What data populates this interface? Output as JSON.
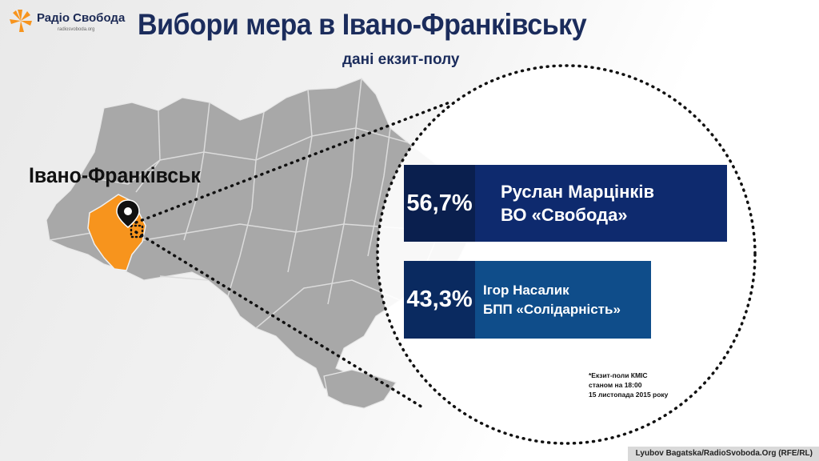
{
  "logo": {
    "name": "Радіо Свобода",
    "sub": "radiosvoboda.org"
  },
  "title": "Вибори мера в Івано-Франківську",
  "subtitle": "дані екзит-полу",
  "city": "Івано-Франківськ",
  "colors": {
    "navy": "#0e2a6e",
    "blue": "#0f4d8a",
    "orange": "#f7941d",
    "map_gray": "#a8a8a8"
  },
  "icons": {
    "logo": "radio-svoboda-burst-icon",
    "pin": "map-pin-icon"
  },
  "chart_data": {
    "type": "bar",
    "categories": [
      "Руслан Марцінків ВО «Свобода»",
      "Ігор Насалик БПП «Солідарність»"
    ],
    "values": [
      56.7,
      43.3
    ],
    "value_labels": [
      "56,7%",
      "43,3%"
    ],
    "candidates": [
      {
        "pct": "56,7%",
        "name": "Руслан Марцінків",
        "party": "ВО «Свобода»"
      },
      {
        "pct": "43,3%",
        "name": "Ігор Насалик",
        "party": "БПП «Солідарність»"
      }
    ],
    "title": "Вибори мера в Івано-Франківську",
    "subtitle": "дані екзит-полу"
  },
  "footnote": [
    "*Екзит-поли КМІС",
    "станом на 18:00",
    "15 листопада 2015 року"
  ],
  "credit": "Lyubov Bagatska/RadioSvoboda.Org (RFE/RL)"
}
